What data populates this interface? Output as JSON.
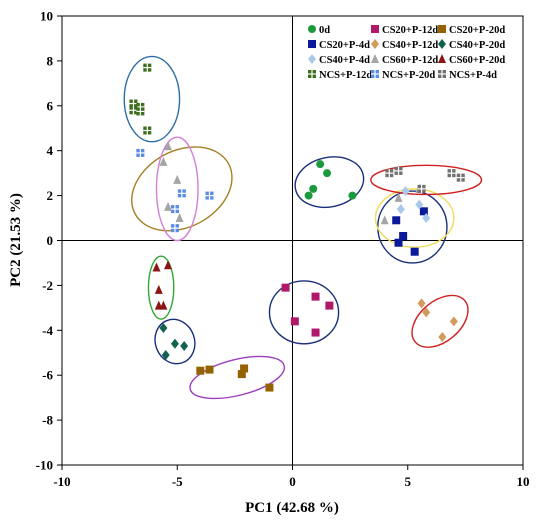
{
  "chart_data": {
    "type": "scatter",
    "title": "",
    "xlabel": "PC1 (42.68 %)",
    "ylabel": "PC2 (21.53 %)",
    "xlim": [
      -10,
      10
    ],
    "ylim": [
      -10,
      10
    ],
    "x_ticks": [
      -10,
      -5,
      0,
      5,
      10
    ],
    "y_ticks": [
      -10,
      -8,
      -6,
      -4,
      -2,
      0,
      2,
      4,
      6,
      8,
      10
    ],
    "zero_lines": true,
    "grid": false,
    "legend_position": "top-right",
    "series": [
      {
        "name": "0d",
        "marker": "circle",
        "color": "#1a9a3c",
        "points": [
          [
            1.2,
            3.4
          ],
          [
            1.5,
            3.0
          ],
          [
            0.9,
            2.3
          ],
          [
            0.7,
            2.0
          ],
          [
            2.6,
            2.0
          ]
        ]
      },
      {
        "name": "CS20+P-12d",
        "marker": "square",
        "color": "#b0186a",
        "points": [
          [
            -0.3,
            -2.1
          ],
          [
            1.0,
            -2.5
          ],
          [
            1.6,
            -2.9
          ],
          [
            0.1,
            -3.6
          ],
          [
            1.0,
            -4.1
          ]
        ]
      },
      {
        "name": "CS20+P-20d",
        "marker": "square",
        "color": "#946200",
        "points": [
          [
            -4.0,
            -5.8
          ],
          [
            -3.6,
            -5.75
          ],
          [
            -2.1,
            -5.7
          ],
          [
            -2.2,
            -5.95
          ],
          [
            -1.0,
            -6.55
          ]
        ]
      },
      {
        "name": "CS20+P-4d",
        "marker": "square",
        "color": "#0a1a9a",
        "points": [
          [
            4.5,
            0.9
          ],
          [
            5.7,
            1.3
          ],
          [
            4.8,
            0.2
          ],
          [
            4.6,
            -0.1
          ],
          [
            5.3,
            -0.5
          ]
        ]
      },
      {
        "name": "CS40+P-12d",
        "marker": "diamond",
        "color": "#d39a5e",
        "points": [
          [
            5.6,
            -2.8
          ],
          [
            5.8,
            -3.2
          ],
          [
            7.0,
            -3.6
          ],
          [
            6.5,
            -4.3
          ]
        ]
      },
      {
        "name": "CS40+P-20d",
        "marker": "diamond",
        "color": "#13614f",
        "points": [
          [
            -5.6,
            -3.9
          ],
          [
            -5.1,
            -4.6
          ],
          [
            -4.7,
            -4.7
          ],
          [
            -5.5,
            -5.1
          ]
        ]
      },
      {
        "name": "CS40+P-4d",
        "marker": "diamond",
        "color": "#a9c8ec",
        "points": [
          [
            4.9,
            2.2
          ],
          [
            5.5,
            1.6
          ],
          [
            5.8,
            1.0
          ],
          [
            4.7,
            1.4
          ]
        ]
      },
      {
        "name": "CS60+P-12d",
        "marker": "triangle",
        "color": "#a5a5a5",
        "points": [
          [
            -5.6,
            3.5
          ],
          [
            -5.4,
            4.2
          ],
          [
            -5.0,
            2.7
          ],
          [
            -5.4,
            1.5
          ],
          [
            -4.9,
            1.0
          ],
          [
            4.0,
            0.9
          ],
          [
            4.6,
            1.9
          ],
          [
            5.5,
            2.3
          ]
        ]
      },
      {
        "name": "CS60+P-20d",
        "marker": "triangle",
        "color": "#8b1515",
        "points": [
          [
            -5.9,
            -1.2
          ],
          [
            -5.4,
            -1.1
          ],
          [
            -5.8,
            -2.2
          ],
          [
            -5.8,
            -2.9
          ],
          [
            -5.6,
            -2.9
          ]
        ]
      },
      {
        "name": "NCS+P-12d",
        "marker": "cross-square",
        "color": "#3c6e1e",
        "points": [
          [
            -6.3,
            7.7
          ],
          [
            -6.9,
            6.1
          ],
          [
            -6.6,
            5.95
          ],
          [
            -6.9,
            5.8
          ],
          [
            -6.6,
            5.75
          ],
          [
            -6.3,
            4.9
          ]
        ]
      },
      {
        "name": "NCS+P-20d",
        "marker": "cross-square",
        "color": "#5a8ce6",
        "points": [
          [
            -6.6,
            3.9
          ],
          [
            -5.1,
            1.4
          ],
          [
            -4.8,
            2.1
          ],
          [
            -3.6,
            2.0
          ],
          [
            -5.1,
            0.55
          ]
        ]
      },
      {
        "name": "NCS+P-4d",
        "marker": "cross-square",
        "color": "#707070",
        "points": [
          [
            4.2,
            3.0
          ],
          [
            4.6,
            3.1
          ],
          [
            5.6,
            2.3
          ],
          [
            6.9,
            3.0
          ],
          [
            7.3,
            2.8
          ]
        ]
      }
    ],
    "ellipses": [
      {
        "cx": -6.1,
        "cy": 6.3,
        "rx": 1.2,
        "ry": 1.9,
        "angle": 0,
        "color": "#2e6da4"
      },
      {
        "cx": -4.8,
        "cy": 2.3,
        "rx": 2.3,
        "ry": 1.7,
        "angle": -28,
        "color": "#a57f25"
      },
      {
        "cx": -5.0,
        "cy": 2.3,
        "rx": 0.9,
        "ry": 2.3,
        "angle": 0,
        "color": "#d47fd7"
      },
      {
        "cx": 1.6,
        "cy": 2.6,
        "rx": 1.5,
        "ry": 1.1,
        "angle": -12,
        "color": "#1a2f7a"
      },
      {
        "cx": 5.2,
        "cy": 0.6,
        "rx": 1.5,
        "ry": 1.6,
        "angle": 0,
        "color": "#1a2f7a"
      },
      {
        "cx": 5.3,
        "cy": 1.0,
        "rx": 1.7,
        "ry": 1.3,
        "angle": 0,
        "color": "#f0dc5a"
      },
      {
        "cx": 5.8,
        "cy": 2.7,
        "rx": 2.4,
        "ry": 0.65,
        "angle": 0,
        "color": "#d02020"
      },
      {
        "cx": 0.5,
        "cy": -3.2,
        "rx": 1.5,
        "ry": 1.4,
        "angle": 0,
        "color": "#1a2f7a"
      },
      {
        "cx": 6.4,
        "cy": -3.6,
        "rx": 1.4,
        "ry": 0.9,
        "angle": -40,
        "color": "#d02020"
      },
      {
        "cx": -5.7,
        "cy": -2.1,
        "rx": 0.55,
        "ry": 1.4,
        "angle": 0,
        "color": "#32a832"
      },
      {
        "cx": -5.1,
        "cy": -4.5,
        "rx": 0.85,
        "ry": 1.0,
        "angle": -20,
        "color": "#1a2f7a"
      },
      {
        "cx": -2.4,
        "cy": -6.1,
        "rx": 2.1,
        "ry": 0.8,
        "angle": -14,
        "color": "#9c3dc0"
      }
    ]
  }
}
